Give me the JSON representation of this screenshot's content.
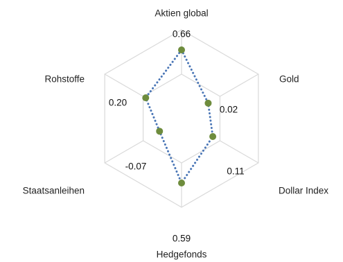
{
  "chart_data": {
    "type": "radar",
    "title": "",
    "categories": [
      "Aktien global",
      "Gold",
      "Dollar Index",
      "Hedgefonds",
      "Staatsanleihen",
      "Rohstoffe"
    ],
    "series": [
      {
        "values": [
          0.66,
          0.02,
          0.11,
          0.59,
          -0.07,
          0.2
        ],
        "data_labels": [
          "0.66",
          "0.02",
          "0.11",
          "0.59",
          "-0.07",
          "0.20"
        ],
        "line_style": "dotted",
        "line_color": "#4a76b6",
        "marker_color": "#6e8c3d"
      }
    ],
    "rlim": [
      -0.5,
      1.0
    ],
    "grid": true,
    "grid_color": "#d9d9d9",
    "legend": "none"
  }
}
